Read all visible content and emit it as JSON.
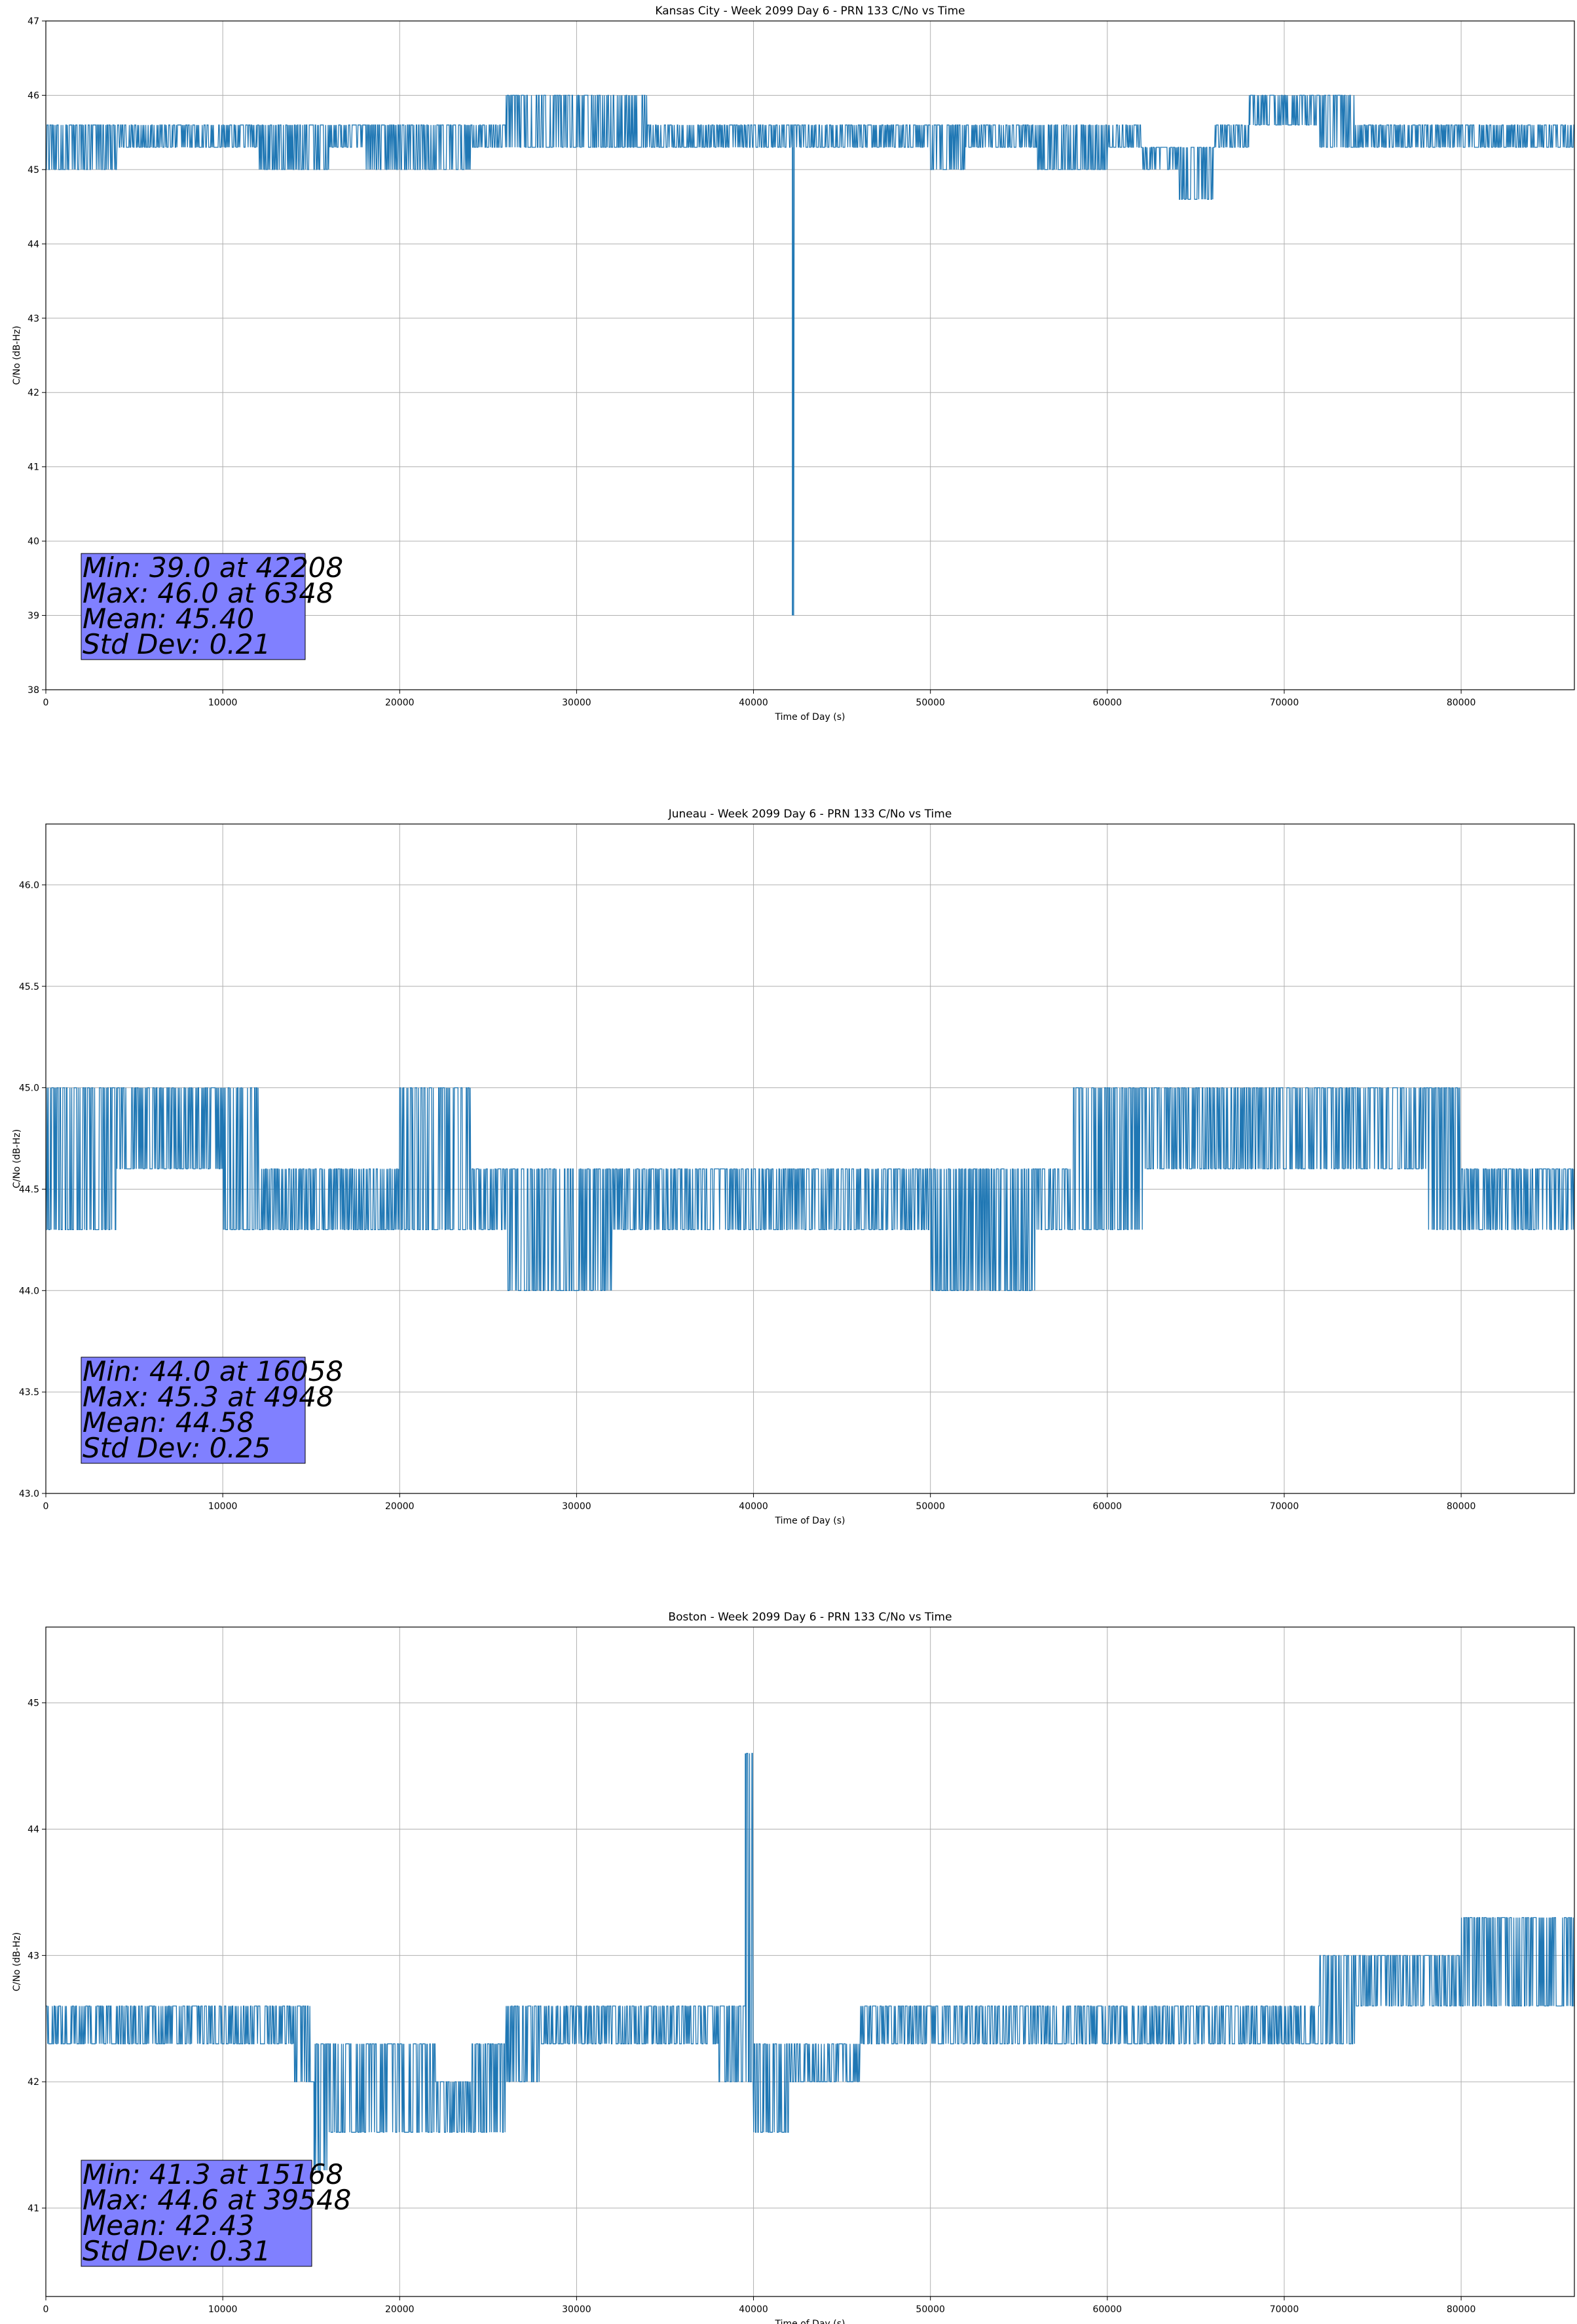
{
  "chart_data": [
    {
      "type": "line",
      "title": "Kansas City - Week 2099 Day 6 - PRN 133 C/No vs Time",
      "xlabel": "Time of Day (s)",
      "ylabel": "C/No (dB-Hz)",
      "xlim": [
        0,
        86400
      ],
      "ylim": [
        38,
        47
      ],
      "xticks": [
        0,
        10000,
        20000,
        30000,
        40000,
        50000,
        60000,
        70000,
        80000
      ],
      "yticks": [
        38,
        39,
        40,
        41,
        42,
        43,
        44,
        45,
        46,
        47
      ],
      "grid": true,
      "series_color": "#1f77b4",
      "x": [
        0,
        2000,
        4000,
        6000,
        8000,
        10000,
        12000,
        14000,
        16000,
        18000,
        20000,
        22000,
        24000,
        26000,
        28000,
        30000,
        32000,
        34000,
        36000,
        38000,
        40000,
        42000,
        42208,
        42400,
        44000,
        46000,
        48000,
        50000,
        52000,
        54000,
        56000,
        58000,
        60000,
        62000,
        64000,
        66000,
        68000,
        70000,
        72000,
        74000,
        76000,
        78000,
        80000,
        82000,
        84000,
        86400
      ],
      "y_low": [
        45.0,
        45.0,
        45.3,
        45.3,
        45.3,
        45.3,
        45.0,
        45.0,
        45.3,
        45.0,
        45.0,
        45.0,
        45.3,
        45.3,
        45.3,
        45.3,
        45.3,
        45.3,
        45.3,
        45.3,
        45.3,
        45.3,
        39.0,
        45.3,
        45.3,
        45.3,
        45.3,
        45.0,
        45.3,
        45.3,
        45.0,
        45.0,
        45.3,
        45.0,
        44.6,
        45.3,
        45.6,
        45.6,
        45.3,
        45.3,
        45.3,
        45.3,
        45.3,
        45.3,
        45.3,
        45.3
      ],
      "y_high": [
        45.6,
        45.6,
        45.6,
        45.6,
        45.6,
        45.6,
        45.6,
        45.6,
        45.6,
        45.6,
        45.6,
        45.6,
        45.6,
        46.0,
        46.0,
        46.0,
        46.0,
        45.6,
        45.6,
        45.6,
        45.6,
        45.6,
        45.6,
        45.6,
        45.6,
        45.6,
        45.6,
        45.6,
        45.6,
        45.6,
        45.6,
        45.6,
        45.6,
        45.3,
        45.3,
        45.6,
        46.0,
        46.0,
        46.0,
        45.6,
        45.6,
        45.6,
        45.6,
        45.6,
        45.6,
        45.6
      ],
      "stats": {
        "min_line": "Min: 39.0 at 42208",
        "max_line": "Max: 46.0 at 6348",
        "mean_line": "Mean: 45.40",
        "std_line": "Std Dev: 0.21"
      }
    },
    {
      "type": "line",
      "title": "Juneau - Week 2099 Day 6 - PRN 133 C/No vs Time",
      "xlabel": "Time of Day (s)",
      "ylabel": "C/No (dB-Hz)",
      "xlim": [
        0,
        86400
      ],
      "ylim": [
        43.0,
        46.3
      ],
      "xticks": [
        0,
        10000,
        20000,
        30000,
        40000,
        50000,
        60000,
        70000,
        80000
      ],
      "yticks": [
        43.0,
        43.5,
        44.0,
        44.5,
        45.0,
        45.5,
        46.0
      ],
      "ytick_labels": [
        "43.0",
        "43.5",
        "44.0",
        "44.5",
        "45.0",
        "45.5",
        "46.0"
      ],
      "grid": true,
      "series_color": "#1f77b4",
      "x": [
        0,
        2000,
        4000,
        6000,
        8000,
        10000,
        12000,
        14000,
        16000,
        18000,
        20000,
        22000,
        24000,
        26000,
        28000,
        30000,
        32000,
        34000,
        36000,
        38000,
        40000,
        42000,
        44000,
        46000,
        48000,
        50000,
        52000,
        54000,
        56000,
        58000,
        60000,
        62000,
        64000,
        66000,
        68000,
        70000,
        72000,
        74000,
        76000,
        78000,
        80000,
        82000,
        84000,
        86400
      ],
      "y_low": [
        44.3,
        44.3,
        44.6,
        44.6,
        44.6,
        44.3,
        44.3,
        44.3,
        44.3,
        44.3,
        44.3,
        44.3,
        44.3,
        44.0,
        44.0,
        44.0,
        44.3,
        44.3,
        44.3,
        44.3,
        44.3,
        44.3,
        44.3,
        44.3,
        44.3,
        44.0,
        44.0,
        44.0,
        44.3,
        44.3,
        44.3,
        44.6,
        44.6,
        44.6,
        44.6,
        44.6,
        44.6,
        44.6,
        44.6,
        44.3,
        44.3,
        44.3,
        44.3,
        44.3
      ],
      "y_high": [
        45.0,
        45.0,
        45.0,
        45.0,
        45.0,
        45.0,
        44.6,
        44.6,
        44.6,
        44.6,
        45.0,
        45.0,
        44.6,
        44.6,
        44.6,
        44.6,
        44.6,
        44.6,
        44.6,
        44.6,
        44.6,
        44.6,
        44.6,
        44.6,
        44.6,
        44.6,
        44.6,
        44.6,
        44.6,
        45.0,
        45.0,
        45.0,
        45.0,
        45.0,
        45.0,
        45.0,
        45.0,
        45.0,
        45.0,
        45.0,
        44.6,
        44.6,
        44.6,
        44.6
      ],
      "stats": {
        "min_line": "Min: 44.0 at 16058",
        "max_line": "Max: 45.3 at 4948",
        "mean_line": "Mean: 44.58",
        "std_line": "Std Dev: 0.25"
      }
    },
    {
      "type": "line",
      "title": "Boston - Week 2099 Day 6 - PRN 133 C/No vs Time",
      "xlabel": "Time of Day (s)",
      "ylabel": "C/No (dB-Hz)",
      "xlim": [
        0,
        86400
      ],
      "ylim": [
        40.3,
        45.6
      ],
      "xticks": [
        0,
        10000,
        20000,
        30000,
        40000,
        50000,
        60000,
        70000,
        80000
      ],
      "yticks": [
        41,
        42,
        43,
        44,
        45
      ],
      "grid": true,
      "series_color": "#1f77b4",
      "x": [
        0,
        2000,
        4000,
        6000,
        8000,
        10000,
        12000,
        14000,
        15168,
        16000,
        18000,
        20000,
        22000,
        24000,
        26000,
        28000,
        30000,
        32000,
        34000,
        36000,
        38000,
        39548,
        40000,
        42000,
        44000,
        46000,
        48000,
        50000,
        52000,
        54000,
        56000,
        58000,
        60000,
        62000,
        64000,
        66000,
        68000,
        70000,
        72000,
        74000,
        76000,
        78000,
        80000,
        82000,
        84000,
        86400
      ],
      "y_low": [
        42.3,
        42.3,
        42.3,
        42.3,
        42.3,
        42.3,
        42.3,
        42.0,
        41.3,
        41.6,
        41.6,
        41.6,
        41.6,
        41.6,
        42.0,
        42.3,
        42.3,
        42.3,
        42.3,
        42.3,
        42.0,
        42.0,
        41.6,
        42.0,
        42.0,
        42.3,
        42.3,
        42.3,
        42.3,
        42.3,
        42.3,
        42.3,
        42.3,
        42.3,
        42.3,
        42.3,
        42.3,
        42.3,
        42.3,
        42.6,
        42.6,
        42.6,
        42.6,
        42.6,
        42.6,
        42.6
      ],
      "y_high": [
        42.6,
        42.6,
        42.6,
        42.6,
        42.6,
        42.6,
        42.6,
        42.6,
        42.3,
        42.3,
        42.3,
        42.3,
        42.0,
        42.3,
        42.6,
        42.6,
        42.6,
        42.6,
        42.6,
        42.6,
        42.6,
        44.6,
        42.3,
        42.3,
        42.3,
        42.6,
        42.6,
        42.6,
        42.6,
        42.6,
        42.6,
        42.6,
        42.6,
        42.6,
        42.6,
        42.6,
        42.6,
        42.6,
        43.0,
        43.0,
        43.0,
        43.0,
        43.3,
        43.3,
        43.3,
        43.3
      ],
      "stats": {
        "min_line": "Min: 41.3 at 15168",
        "max_line": "Max: 44.6 at 39548",
        "mean_line": "Mean: 42.43",
        "std_line": "Std Dev: 0.31"
      }
    }
  ],
  "stats_box_color": "#8080ff"
}
